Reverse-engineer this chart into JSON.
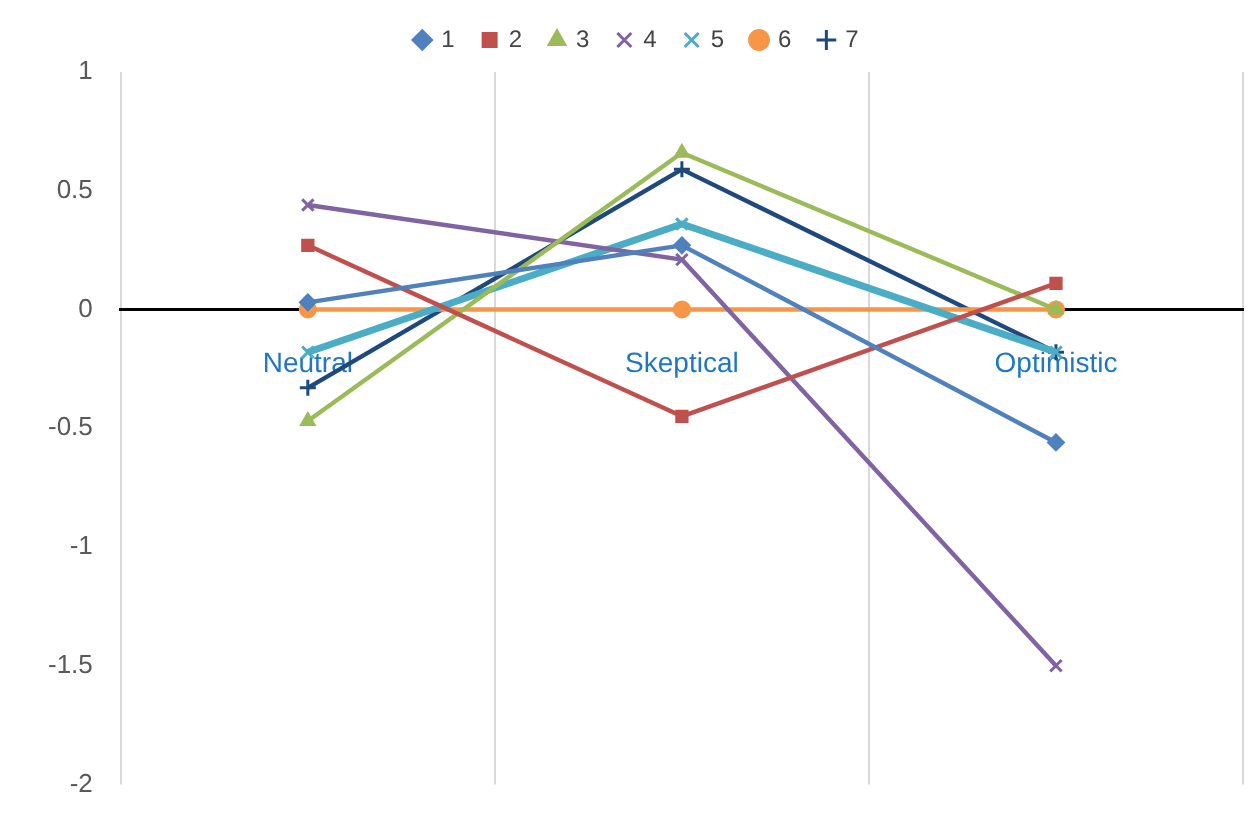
{
  "chart_data": {
    "type": "line",
    "categories": [
      "Neutral",
      "Skeptical",
      "Optimistic"
    ],
    "ylim": [
      -2,
      1
    ],
    "yticks": [
      -2,
      -1.5,
      -1,
      -0.5,
      0,
      0.5,
      1
    ],
    "grid": "x",
    "legend": "top",
    "series": [
      {
        "name": "1",
        "color": "#4f81bd",
        "marker": "diamond",
        "values": [
          0.03,
          0.27,
          -0.56
        ]
      },
      {
        "name": "2",
        "color": "#c0504d",
        "marker": "square",
        "values": [
          0.27,
          -0.45,
          0.11
        ]
      },
      {
        "name": "3",
        "color": "#9bbb59",
        "marker": "triangle",
        "values": [
          -0.47,
          0.66,
          0
        ]
      },
      {
        "name": "4",
        "color": "#8064a2",
        "marker": "cross",
        "values": [
          0.44,
          0.21,
          -1.5
        ]
      },
      {
        "name": "5",
        "color": "#4bacc6",
        "marker": "cross",
        "values": [
          -0.18,
          0.36,
          -0.18
        ]
      },
      {
        "name": "6",
        "color": "#f79646",
        "marker": "circle",
        "values": [
          0,
          0,
          0
        ]
      },
      {
        "name": "7",
        "color": "#1f497d",
        "marker": "cross",
        "values": [
          -0.33,
          0.59,
          -0.18
        ]
      }
    ]
  }
}
